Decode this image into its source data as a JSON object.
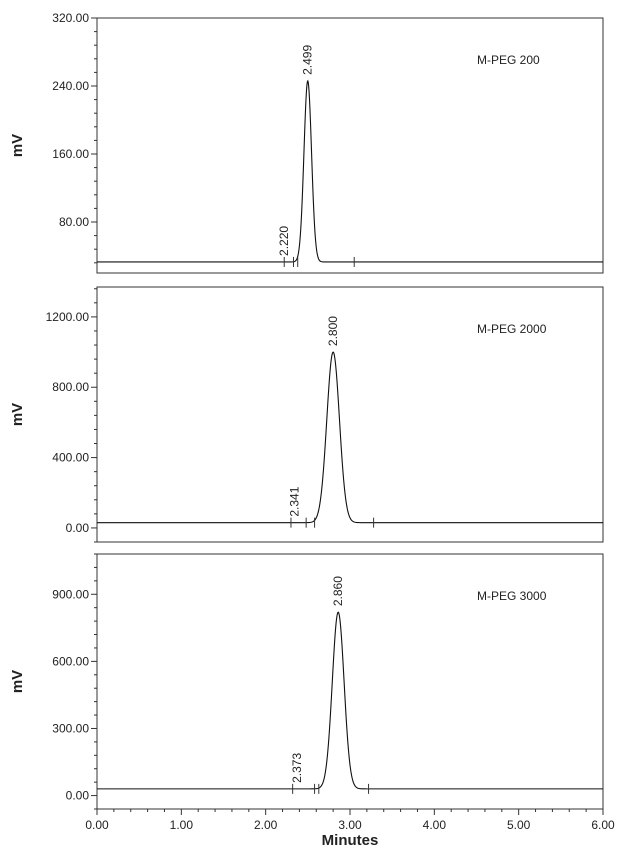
{
  "chart_data": [
    {
      "type": "line",
      "panel": "top",
      "sample_label": "M-PEG 200",
      "ylabel": "mV",
      "xlabel": "",
      "ylim": [
        20,
        320
      ],
      "yticks": [
        80.0,
        160.0,
        240.0,
        320.0
      ],
      "ytick_labels": [
        "80.00",
        "160.00",
        "240.00",
        "320.00"
      ],
      "baseline": 33,
      "peaks": [
        {
          "x": 2.22,
          "label": "2.220",
          "height": 0,
          "sigma": 0.03
        },
        {
          "x": 2.499,
          "label": "2.499",
          "height": 213,
          "sigma": 0.045
        }
      ],
      "integration_marks": [
        2.22,
        2.33,
        2.38,
        3.05
      ]
    },
    {
      "type": "line",
      "panel": "middle",
      "sample_label": "M-PEG 2000",
      "ylabel": "mV",
      "xlabel": "",
      "ylim": [
        -80,
        1370
      ],
      "yticks": [
        0.0,
        400.0,
        800.0,
        1200.0
      ],
      "ytick_labels": [
        "0.00",
        "400.00",
        "800.00",
        "1200.00"
      ],
      "baseline": 30,
      "peaks": [
        {
          "x": 2.341,
          "label": "2.341",
          "height": 0,
          "sigma": 0.03
        },
        {
          "x": 2.8,
          "label": "2.800",
          "height": 970,
          "sigma": 0.075
        }
      ],
      "integration_marks": [
        2.3,
        2.48,
        2.58,
        3.28
      ]
    },
    {
      "type": "line",
      "panel": "bottom",
      "sample_label": "M-PEG 3000",
      "ylabel": "mV",
      "xlabel": "Minutes",
      "ylim": [
        -60,
        1080
      ],
      "yticks": [
        0.0,
        300.0,
        600.0,
        900.0
      ],
      "ytick_labels": [
        "0.00",
        "300.00",
        "600.00",
        "900.00"
      ],
      "xlim": [
        0,
        6
      ],
      "xticks": [
        0.0,
        1.0,
        2.0,
        3.0,
        4.0,
        5.0,
        6.0
      ],
      "xtick_labels": [
        "0.00",
        "1.00",
        "2.00",
        "3.00",
        "4.00",
        "5.00",
        "6.00"
      ],
      "baseline": 30,
      "peaks": [
        {
          "x": 2.373,
          "label": "2.373",
          "height": 0,
          "sigma": 0.03
        },
        {
          "x": 2.86,
          "label": "2.860",
          "height": 790,
          "sigma": 0.07
        }
      ],
      "integration_marks": [
        2.32,
        2.58,
        2.63,
        3.22
      ]
    }
  ]
}
